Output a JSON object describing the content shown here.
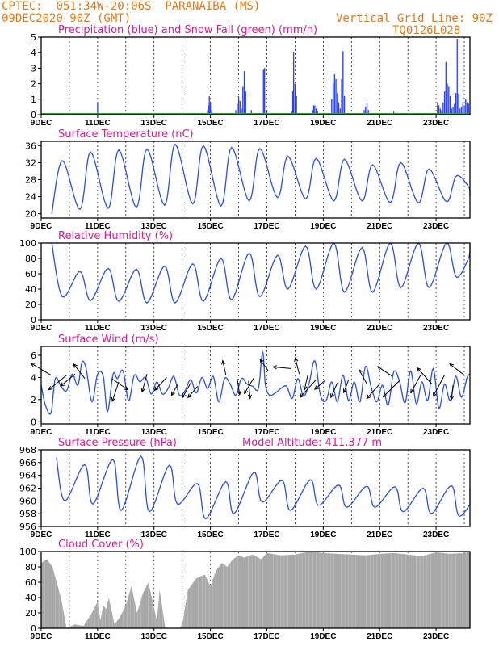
{
  "header": {
    "station": "CPTEC:  051:34W-20:06S  PARANAIBA (MS)",
    "init_time": "09DEC2020 90Z (GMT)",
    "grid_note": "Vertical Grid Line: 90Z",
    "code": "TQ0126L028"
  },
  "colors": {
    "header": "#e87a16",
    "title": "#e0198f",
    "line": "#2b4fe3",
    "precip": "#2b3ff0",
    "snow": "#1faa1f",
    "cloud": "#a8a8a8",
    "axis": "#000000"
  },
  "chart_data": [
    {
      "id": "precip",
      "type": "bar",
      "title": "Precipitation (blue) and Snow Fall (green) (mm/h)",
      "ylim": [
        0,
        5
      ],
      "yticks": [
        0,
        1,
        2,
        3,
        4,
        5
      ],
      "xlim": [
        0,
        15.2
      ],
      "xticks": [
        "9DEC",
        "11DEC",
        "13DEC",
        "15DEC",
        "17DEC",
        "19DEC",
        "21DEC",
        "23DEC"
      ],
      "xtick_days": [
        0,
        2,
        4,
        6,
        8,
        10,
        12,
        14
      ],
      "series": [
        {
          "name": "Precipitation",
          "color": "#2b3ff0",
          "x": [
            2.0,
            5.9,
            5.93,
            5.96,
            6.0,
            6.05,
            6.9,
            6.95,
            7.0,
            7.05,
            7.1,
            7.15,
            7.2,
            7.25,
            7.45,
            7.88,
            7.92,
            8.0,
            8.88,
            8.92,
            8.95,
            9.0,
            9.05,
            9.62,
            9.66,
            9.7,
            9.75,
            9.8,
            10.3,
            10.35,
            10.4,
            10.45,
            10.5,
            10.55,
            10.6,
            10.65,
            10.7,
            10.75,
            11.45,
            11.5,
            11.55,
            11.6,
            12.5,
            14.05,
            14.1,
            14.15,
            14.2,
            14.25,
            14.3,
            14.35,
            14.4,
            14.45,
            14.5,
            14.55,
            14.6,
            14.65,
            14.7,
            14.75,
            14.8,
            14.85,
            14.9,
            14.95,
            15.0,
            15.05,
            15.1,
            15.15
          ],
          "values": [
            0.8,
            0.3,
            0.6,
            1.2,
            0.8,
            0.3,
            0.3,
            0.7,
            1.2,
            0.9,
            0.4,
            1.8,
            2.8,
            1.5,
            0.3,
            2.9,
            3.0,
            0.3,
            0.2,
            1.5,
            4.0,
            2.0,
            1.2,
            0.3,
            0.6,
            0.6,
            0.4,
            0.2,
            1.0,
            2.0,
            2.6,
            2.3,
            1.4,
            0.8,
            0.4,
            2.3,
            4.1,
            1.2,
            0.3,
            0.5,
            0.8,
            0.3,
            0.2,
            0.8,
            0.6,
            0.4,
            0.3,
            0.8,
            1.5,
            3.4,
            2.0,
            1.8,
            1.2,
            0.4,
            0.5,
            0.7,
            1.4,
            4.9,
            1.3,
            0.4,
            0.5,
            0.8,
            0.6,
            1.0,
            0.8,
            0.7
          ]
        },
        {
          "name": "Snow Fall",
          "color": "#1faa1f",
          "constant": 0
        }
      ]
    },
    {
      "id": "temp",
      "type": "line",
      "title": "Surface Temperature (nC)",
      "ylim": [
        19,
        37
      ],
      "yticks": [
        20,
        24,
        28,
        32,
        36
      ],
      "xlim": [
        0,
        15.2
      ],
      "xticks": [
        "9DEC",
        "11DEC",
        "13DEC",
        "15DEC",
        "17DEC",
        "19DEC",
        "21DEC",
        "23DEC"
      ],
      "xtick_days": [
        0,
        2,
        4,
        6,
        8,
        10,
        12,
        14
      ],
      "daily_max": [
        32.5,
        34.5,
        35,
        35.2,
        36.3,
        36,
        35.6,
        35.3,
        33.5,
        33,
        32.8,
        31.5,
        32,
        30.5,
        29,
        26.5
      ],
      "daily_min": [
        20,
        21,
        21.3,
        21.5,
        22,
        22.3,
        21.8,
        23,
        23.8,
        23.5,
        23,
        23,
        22.6,
        22.5,
        22.8,
        24.2
      ]
    },
    {
      "id": "rh",
      "type": "line",
      "title": "Relative Humidity (%)",
      "ylim": [
        0,
        100
      ],
      "yticks": [
        0,
        20,
        40,
        60,
        80,
        100
      ],
      "xlim": [
        0,
        15.2
      ],
      "xticks": [
        "9DEC",
        "11DEC",
        "13DEC",
        "15DEC",
        "17DEC",
        "19DEC",
        "21DEC",
        "23DEC"
      ],
      "xtick_days": [
        0,
        2,
        4,
        6,
        8,
        10,
        12,
        14
      ],
      "daily_max": [
        100,
        63,
        67,
        66,
        70,
        73,
        80,
        87,
        84,
        96,
        100,
        94,
        100,
        100,
        100,
        100
      ],
      "daily_min": [
        30,
        25,
        24,
        22,
        22,
        24,
        26,
        30,
        40,
        40,
        36,
        36,
        42,
        42,
        55,
        60
      ]
    },
    {
      "id": "wind",
      "type": "line",
      "title": "Surface Wind (m/s)",
      "ylim": [
        -0.2,
        6.8
      ],
      "yticks": [
        0,
        2,
        4,
        6
      ],
      "xlim": [
        0,
        15.2
      ],
      "xticks": [
        "9DEC",
        "11DEC",
        "13DEC",
        "15DEC",
        "17DEC",
        "19DEC",
        "21DEC",
        "23DEC"
      ],
      "xtick_days": [
        0,
        2,
        4,
        6,
        8,
        10,
        12,
        14
      ],
      "speed_x": [
        0,
        0.15,
        0.35,
        0.5,
        0.7,
        0.9,
        1.1,
        1.3,
        1.45,
        1.6,
        1.8,
        2.0,
        2.2,
        2.35,
        2.55,
        2.7,
        2.9,
        3.1,
        3.3,
        3.5,
        3.7,
        3.9,
        4.1,
        4.3,
        4.5,
        4.7,
        4.9,
        5.1,
        5.3,
        5.5,
        5.7,
        5.9,
        6.1,
        6.3,
        6.5,
        6.7,
        6.9,
        7.1,
        7.3,
        7.5,
        7.7,
        7.85,
        7.95,
        8.1,
        8.3,
        8.5,
        8.7,
        8.9,
        9.1,
        9.3,
        9.5,
        9.7,
        9.9,
        10.1,
        10.3,
        10.5,
        10.7,
        10.9,
        11.1,
        11.3,
        11.5,
        11.7,
        11.9,
        12.1,
        12.3,
        12.5,
        12.7,
        12.9,
        13.1,
        13.3,
        13.5,
        13.7,
        13.9,
        14.1,
        14.3,
        14.5,
        14.7,
        14.9,
        15.1,
        15.2
      ],
      "speed": [
        3.3,
        1.5,
        0.8,
        3.9,
        3.2,
        2.8,
        4.3,
        3.3,
        5.4,
        4.7,
        1.8,
        4.3,
        4.1,
        0.9,
        4.3,
        3.9,
        4.6,
        1.9,
        4.2,
        3.6,
        4.0,
        2.5,
        3.6,
        2.5,
        3.0,
        4.1,
        2.4,
        2.8,
        3.8,
        2.6,
        4.0,
        3.0,
        4.1,
        1.8,
        3.9,
        3.4,
        2.4,
        3.9,
        3.4,
        3.2,
        3.0,
        6.3,
        3.3,
        2.4,
        2.6,
        3.0,
        3.2,
        2.1,
        3.9,
        2.3,
        3.5,
        5.5,
        2.4,
        1.9,
        3.6,
        1.8,
        4.2,
        1.9,
        3.6,
        1.8,
        5.0,
        3.1,
        1.8,
        3.3,
        1.5,
        4.5,
        3.7,
        1.7,
        4.6,
        1.6,
        3.6,
        1.9,
        4.8,
        1.2,
        3.4,
        1.9,
        4.1,
        2.2,
        4.0,
        4.3
      ]
    },
    {
      "id": "pressure",
      "type": "line",
      "title": "Surface Pressure (hPa)",
      "subtitle": "Model Altitude: 411.377  m",
      "ylim": [
        956,
        968
      ],
      "yticks": [
        956,
        958,
        960,
        962,
        964,
        966,
        968
      ],
      "xlim": [
        0,
        15.2
      ],
      "xticks": [
        "9DEC",
        "11DEC",
        "13DEC",
        "15DEC",
        "17DEC",
        "19DEC",
        "21DEC",
        "23DEC"
      ],
      "xtick_days": [
        0,
        2,
        4,
        6,
        8,
        10,
        12,
        14
      ],
      "daily_max": [
        966.8,
        965.7,
        966.5,
        967.0,
        965.6,
        962.7,
        963.0,
        964.5,
        963.2,
        963.3,
        962.5,
        962.3,
        962.2,
        962.0,
        962.4,
        962.0
      ],
      "daily_min": [
        960.0,
        959.5,
        958.5,
        958.3,
        959.5,
        957.2,
        958.0,
        959.8,
        958.5,
        959.3,
        959.0,
        959.0,
        958.3,
        958.0,
        957.6,
        957.6
      ]
    },
    {
      "id": "cloud",
      "type": "area",
      "title": "Cloud Cover (%)",
      "ylim": [
        0,
        100
      ],
      "yticks": [
        0,
        20,
        40,
        60,
        80,
        100
      ],
      "xlim": [
        0,
        15.2
      ],
      "xticks": [
        "9DEC",
        "11DEC",
        "13DEC",
        "15DEC",
        "17DEC",
        "19DEC",
        "21DEC",
        "23DEC"
      ],
      "xtick_days": [
        0,
        2,
        4,
        6,
        8,
        10,
        12,
        14
      ],
      "x": [
        0,
        0.2,
        0.4,
        0.55,
        0.7,
        0.8,
        0.9,
        1.0,
        1.2,
        1.5,
        1.8,
        2.0,
        2.1,
        2.2,
        2.3,
        2.4,
        2.6,
        2.8,
        3.0,
        3.2,
        3.4,
        3.6,
        3.8,
        3.95,
        4.1,
        4.2,
        4.3,
        4.4,
        4.5,
        4.6,
        4.7,
        4.8,
        4.9,
        5.0,
        5.2,
        5.5,
        5.8,
        6.0,
        6.2,
        6.4,
        6.6,
        6.8,
        7.0,
        7.2,
        7.5,
        7.8,
        8.0,
        8.5,
        9.0,
        9.5,
        10.0,
        10.5,
        11.0,
        11.5,
        12.0,
        12.5,
        13.0,
        13.5,
        14.0,
        14.5,
        15.0,
        15.2
      ],
      "values": [
        85,
        90,
        80,
        60,
        40,
        20,
        0,
        2,
        5,
        3,
        20,
        35,
        10,
        30,
        25,
        40,
        5,
        15,
        30,
        55,
        20,
        45,
        60,
        35,
        10,
        50,
        25,
        0,
        0,
        0,
        0,
        0,
        0,
        5,
        50,
        65,
        70,
        55,
        75,
        85,
        80,
        90,
        95,
        92,
        96,
        90,
        98,
        95,
        96,
        100,
        98,
        97,
        96,
        95,
        97,
        98,
        96,
        94,
        99,
        97,
        98,
        100
      ]
    }
  ]
}
